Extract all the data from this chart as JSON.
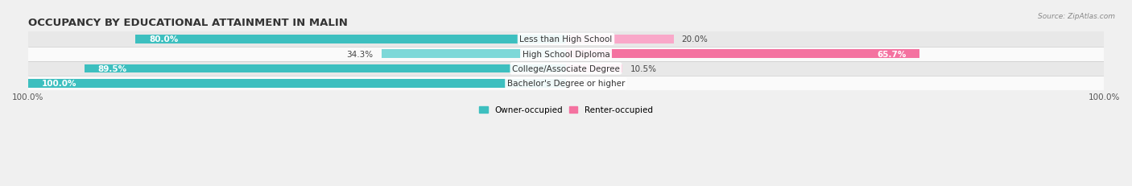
{
  "title": "OCCUPANCY BY EDUCATIONAL ATTAINMENT IN MALIN",
  "source": "Source: ZipAtlas.com",
  "categories": [
    "Less than High School",
    "High School Diploma",
    "College/Associate Degree",
    "Bachelor's Degree or higher"
  ],
  "owner_pct": [
    80.0,
    34.3,
    89.5,
    100.0
  ],
  "renter_pct": [
    20.0,
    65.7,
    10.5,
    0.0
  ],
  "owner_color": "#3DBFBF",
  "renter_color": "#F472A0",
  "owner_color_light": "#7DD8D8",
  "renter_color_light": "#F9A8C9",
  "bar_height": 0.58,
  "bg_color": "#f0f0f0",
  "row_colors": [
    "#e8e8e8",
    "#fafafa",
    "#e8e8e8",
    "#fafafa"
  ],
  "title_fontsize": 9.5,
  "label_fontsize": 7.5,
  "cat_fontsize": 7.5,
  "tick_fontsize": 7.5,
  "source_fontsize": 6.5
}
